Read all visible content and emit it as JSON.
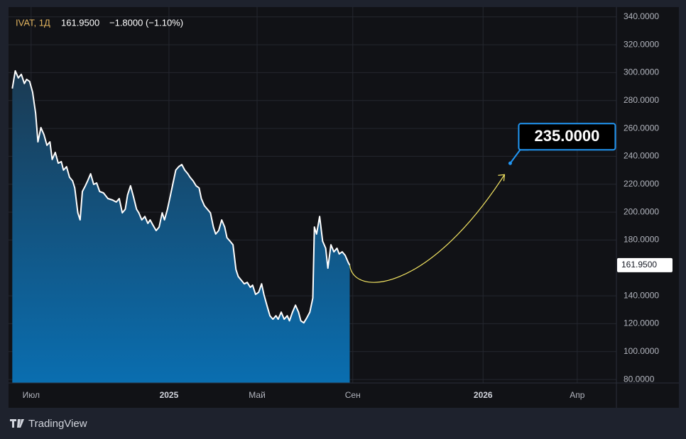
{
  "chart_data": {
    "type": "area",
    "series": [
      {
        "name": "IVAT, 1Д",
        "color": "#ffffff",
        "x": [
          -25,
          -21,
          -17,
          -13,
          -9,
          -6,
          -2,
          2,
          6,
          9,
          13,
          17,
          21,
          25,
          28,
          32,
          36,
          40,
          43,
          47,
          51,
          55,
          58,
          62,
          65,
          68,
          72,
          75,
          79,
          83,
          87,
          91,
          96,
          102,
          108,
          113,
          117,
          121,
          125,
          128,
          132,
          136,
          140,
          143,
          147,
          151,
          155,
          158,
          162,
          166,
          170,
          174,
          177,
          181,
          185,
          189,
          192,
          196,
          200,
          204,
          208,
          211,
          215,
          219,
          223,
          226,
          230,
          234,
          238,
          242,
          245,
          249,
          253,
          257,
          260,
          264,
          268,
          272,
          275,
          279,
          283,
          287,
          291,
          294,
          298,
          302,
          306,
          309,
          313,
          317,
          321,
          325,
          328,
          332,
          336,
          340,
          343,
          347,
          351,
          355,
          358,
          362,
          366,
          370,
          374,
          376,
          379,
          383,
          387,
          391,
          394,
          398,
          402,
          406,
          409,
          413,
          417,
          421,
          423
        ],
        "values": [
          288.6,
          301.3,
          296.2,
          298.8,
          292.2,
          295.2,
          293.7,
          286.0,
          270.8,
          250.4,
          260.6,
          255.5,
          247.9,
          250.4,
          237.7,
          242.8,
          235.1,
          236.2,
          230.1,
          232.6,
          225.0,
          222.4,
          217.3,
          199.5,
          194.4,
          214.8,
          218.9,
          222.4,
          227.5,
          219.9,
          220.9,
          214.8,
          213.8,
          209.7,
          208.7,
          207.2,
          209.7,
          199.5,
          202.1,
          212.2,
          218.9,
          210.7,
          202.1,
          199.5,
          194.4,
          196.9,
          191.9,
          194.4,
          190.4,
          186.8,
          189.3,
          199.5,
          194.4,
          202.1,
          212.2,
          222.4,
          230.1,
          232.6,
          234.1,
          230.1,
          227.5,
          225.0,
          222.4,
          218.9,
          217.3,
          209.7,
          204.6,
          202.1,
          199.5,
          189.3,
          184.3,
          186.8,
          194.4,
          189.3,
          181.7,
          179.2,
          176.6,
          158.8,
          153.8,
          151.2,
          148.6,
          149.6,
          146.1,
          147.6,
          141.0,
          142.5,
          148.6,
          141.0,
          133.3,
          125.7,
          123.2,
          125.7,
          123.2,
          128.3,
          123.2,
          125.7,
          122.1,
          128.3,
          133.3,
          128.3,
          122.1,
          120.6,
          124.2,
          128.3,
          138.4,
          189.3,
          184.3,
          196.9,
          179.2,
          174.1,
          159.8,
          176.6,
          171.5,
          174.1,
          170.0,
          171.5,
          169.0,
          163.9,
          161.95
        ]
      }
    ],
    "last": {
      "value": 161.95,
      "label": "161.9500"
    },
    "change": "−1.8000 (−1.10%)",
    "target": {
      "x": 636,
      "value": 235,
      "label": "235.0000"
    },
    "xlim": [
      -30,
      777
    ],
    "xticks": [
      {
        "value": 0,
        "label": "Июл"
      },
      {
        "value": 183,
        "label": "2025"
      },
      {
        "value": 300,
        "label": "Май"
      },
      {
        "value": 427,
        "label": "Сен"
      },
      {
        "value": 600,
        "label": "2026"
      },
      {
        "value": 725,
        "label": "Апр"
      }
    ],
    "ylim": [
      77.5,
      347
    ],
    "yticks": [
      {
        "value": 340,
        "label": "340.0000"
      },
      {
        "value": 320,
        "label": "320.0000"
      },
      {
        "value": 300,
        "label": "300.0000"
      },
      {
        "value": 280,
        "label": "280.0000"
      },
      {
        "value": 260,
        "label": "260.0000"
      },
      {
        "value": 240,
        "label": "240.0000"
      },
      {
        "value": 220,
        "label": "220.0000"
      },
      {
        "value": 200,
        "label": "200.0000"
      },
      {
        "value": 180,
        "label": "180.0000"
      },
      {
        "value": 140,
        "label": "140.0000"
      },
      {
        "value": 120,
        "label": "120.0000"
      },
      {
        "value": 100,
        "label": "100.0000"
      },
      {
        "value": 80,
        "label": "80.0000"
      }
    ],
    "grid": true
  },
  "brand": "TradingView"
}
